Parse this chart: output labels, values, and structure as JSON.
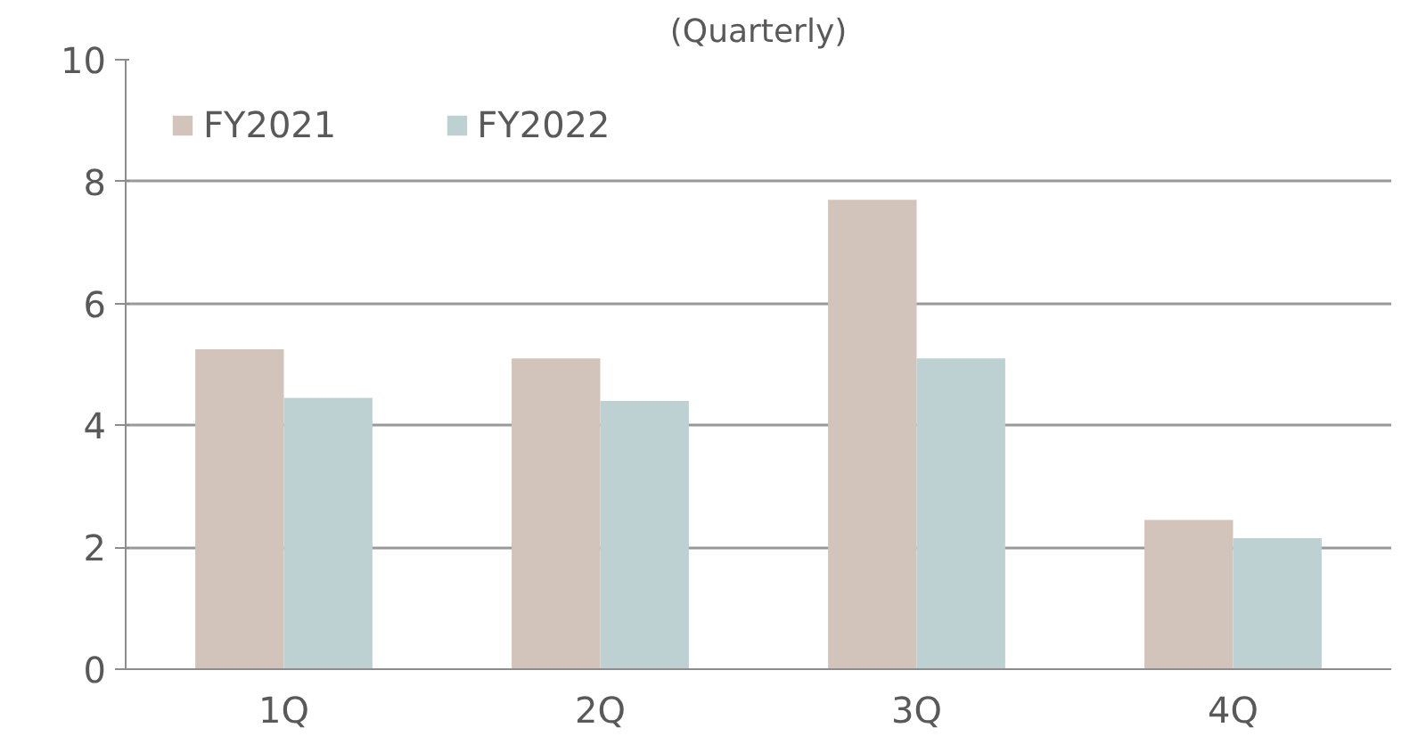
{
  "chart_data": {
    "type": "bar",
    "title": "(Quarterly)",
    "categories": [
      "1Q",
      "2Q",
      "3Q",
      "4Q"
    ],
    "series": [
      {
        "name": "FY2021",
        "color": "#d3c4bb",
        "values": [
          5.25,
          5.1,
          7.7,
          2.45
        ]
      },
      {
        "name": "FY2022",
        "color": "#bdd1d3",
        "values": [
          4.45,
          4.4,
          5.1,
          2.15
        ]
      }
    ],
    "ylim": [
      0,
      10
    ],
    "yticks": [
      0,
      2,
      4,
      6,
      8,
      10
    ],
    "grid": "y",
    "legend": "top left"
  }
}
